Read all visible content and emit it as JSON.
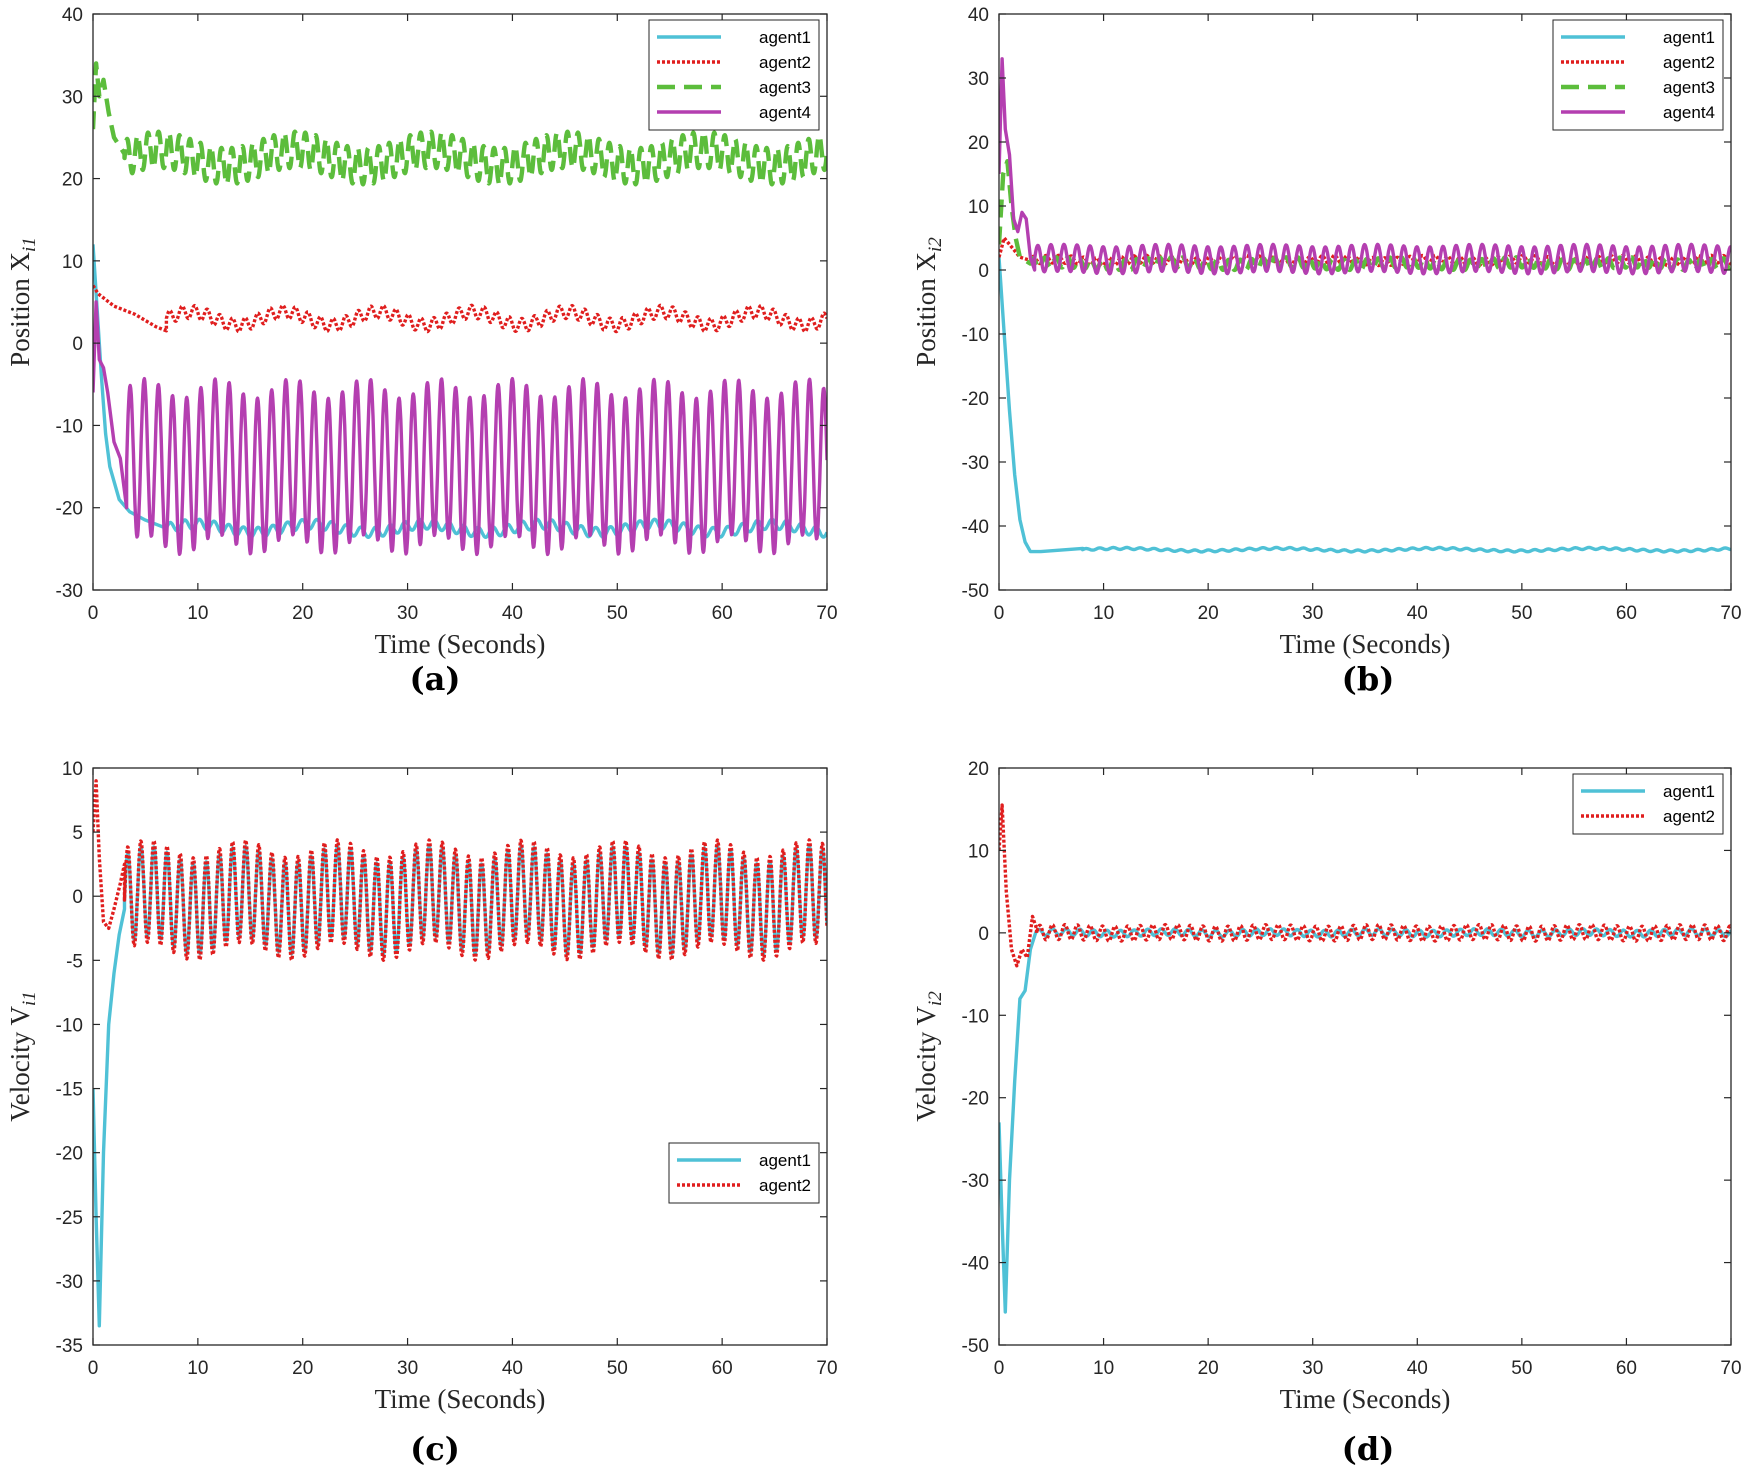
{
  "colors": {
    "agent1": "#4fc1d6",
    "agent2": "#e01e1e",
    "agent3": "#5cbd3c",
    "agent4": "#b43fb0",
    "axis": "#262626"
  },
  "chart_data": [
    {
      "type": "line",
      "panel": "(a)",
      "xlabel": "Time (Seconds)",
      "ylabel_main": "Position X",
      "ylabel_sub": "i1",
      "xlim": [
        0,
        70
      ],
      "ylim": [
        -30,
        40
      ],
      "xticks": [
        0,
        10,
        20,
        30,
        40,
        50,
        60,
        70
      ],
      "yticks": [
        -30,
        -20,
        -10,
        0,
        10,
        20,
        30,
        40
      ],
      "legend_position": "top-right",
      "series": [
        {
          "name": "agent1",
          "key": "agent1",
          "style": "solid",
          "transient": [
            [
              0,
              12
            ],
            [
              0.4,
              4
            ],
            [
              0.8,
              -4
            ],
            [
              1.2,
              -11
            ],
            [
              1.6,
              -15
            ],
            [
              2.5,
              -19
            ],
            [
              3.5,
              -20.5
            ],
            [
              5,
              -21.5
            ],
            [
              7,
              -22.5
            ]
          ],
          "osc": {
            "t0": 7,
            "center": -22.5,
            "amp": 0.6,
            "period": 1.4,
            "amp2": 0.5,
            "period2": 11
          }
        },
        {
          "name": "agent2",
          "key": "agent2",
          "style": "dotted",
          "transient": [
            [
              0,
              7
            ],
            [
              0.5,
              6
            ],
            [
              1,
              5.5
            ],
            [
              2,
              4.5
            ],
            [
              3,
              4
            ],
            [
              4,
              3.5
            ],
            [
              6,
              2
            ],
            [
              7,
              1.5
            ]
          ],
          "osc": {
            "t0": 7,
            "center": 3,
            "amp": 0.8,
            "period": 1.2,
            "amp2": 0.8,
            "period2": 9
          }
        },
        {
          "name": "agent3",
          "key": "agent3",
          "style": "dashed",
          "transient": [
            [
              0,
              26
            ],
            [
              0.3,
              34
            ],
            [
              0.6,
              30
            ],
            [
              1,
              32
            ],
            [
              1.5,
              28
            ],
            [
              2,
              25
            ],
            [
              3,
              23
            ]
          ],
          "osc": {
            "t0": 3,
            "center": 22.5,
            "amp": 2.2,
            "period": 1.0,
            "amp2": 1.0,
            "period2": 13
          }
        },
        {
          "name": "agent4",
          "key": "agent4",
          "style": "solid",
          "transient": [
            [
              0,
              -6
            ],
            [
              0.3,
              5
            ],
            [
              0.6,
              -2
            ],
            [
              1,
              -3
            ],
            [
              1.4,
              -6
            ],
            [
              2,
              -12
            ],
            [
              2.6,
              -14
            ],
            [
              3.2,
              -20
            ]
          ],
          "osc": {
            "t0": 3.2,
            "center": -15,
            "amp": 9.5,
            "period": 1.35,
            "amp2": 1.2,
            "period2": 7
          }
        }
      ]
    },
    {
      "type": "line",
      "panel": "(b)",
      "xlabel": "Time (Seconds)",
      "ylabel_main": "Position X",
      "ylabel_sub": "i2",
      "xlim": [
        0,
        70
      ],
      "ylim": [
        -50,
        40
      ],
      "xticks": [
        0,
        10,
        20,
        30,
        40,
        50,
        60,
        70
      ],
      "yticks": [
        -50,
        -40,
        -30,
        -20,
        -10,
        0,
        10,
        20,
        30,
        40
      ],
      "legend_position": "top-right",
      "series": [
        {
          "name": "agent1",
          "key": "agent1",
          "style": "solid",
          "transient": [
            [
              0,
              2
            ],
            [
              0.5,
              -10
            ],
            [
              1,
              -22
            ],
            [
              1.5,
              -32
            ],
            [
              2,
              -39
            ],
            [
              2.5,
              -42.5
            ],
            [
              3,
              -44
            ],
            [
              4,
              -44
            ],
            [
              8,
              -43.5
            ]
          ],
          "osc": {
            "t0": 8,
            "center": -43.7,
            "amp": 0.15,
            "period": 1.3,
            "amp2": 0.2,
            "period2": 15
          }
        },
        {
          "name": "agent2",
          "key": "agent2",
          "style": "dotted",
          "transient": [
            [
              0,
              2
            ],
            [
              0.5,
              5
            ],
            [
              1,
              4
            ],
            [
              1.5,
              3
            ],
            [
              2,
              2
            ],
            [
              3,
              1.5
            ]
          ],
          "osc": {
            "t0": 3,
            "center": 1.5,
            "amp": 0.6,
            "period": 1.2,
            "amp2": 0.2,
            "period2": 9
          }
        },
        {
          "name": "agent3",
          "key": "agent3",
          "style": "dashed",
          "transient": [
            [
              0,
              4
            ],
            [
              0.4,
              15
            ],
            [
              0.8,
              17
            ],
            [
              1.2,
              10
            ],
            [
              1.6,
              5
            ],
            [
              2,
              2
            ],
            [
              3,
              1
            ]
          ],
          "osc": {
            "t0": 3,
            "center": 1,
            "amp": 0.8,
            "period": 1.1,
            "amp2": 0.2,
            "period2": 11
          }
        },
        {
          "name": "agent4",
          "key": "agent4",
          "style": "solid",
          "transient": [
            [
              0,
              15
            ],
            [
              0.3,
              33
            ],
            [
              0.6,
              22
            ],
            [
              1,
              18
            ],
            [
              1.4,
              8
            ],
            [
              1.8,
              6
            ],
            [
              2.2,
              9
            ],
            [
              2.6,
              8
            ],
            [
              3,
              2
            ],
            [
              3.4,
              0
            ]
          ],
          "osc": {
            "t0": 3.4,
            "center": 1.7,
            "amp": 2.1,
            "period": 1.25,
            "amp2": 0.2,
            "period2": 10
          }
        }
      ]
    },
    {
      "type": "line",
      "panel": "(c)",
      "xlabel": "Time (Seconds)",
      "ylabel_main": "Velocity V",
      "ylabel_sub": "i1",
      "xlim": [
        0,
        70
      ],
      "ylim": [
        -35,
        10
      ],
      "xticks": [
        0,
        10,
        20,
        30,
        40,
        50,
        60,
        70
      ],
      "yticks": [
        -35,
        -30,
        -25,
        -20,
        -15,
        -10,
        -5,
        0,
        5,
        10
      ],
      "legend_position": "bottom-right",
      "series": [
        {
          "name": "agent1",
          "key": "agent1",
          "style": "solid",
          "transient": [
            [
              0,
              -15
            ],
            [
              0.3,
              -25
            ],
            [
              0.6,
              -33.5
            ],
            [
              1,
              -20
            ],
            [
              1.5,
              -10
            ],
            [
              2,
              -6
            ],
            [
              2.5,
              -3
            ],
            [
              3,
              -1
            ]
          ],
          "osc": {
            "t0": 3,
            "center": -0.3,
            "amp": 3.5,
            "period": 1.25,
            "amp2": 0.7,
            "period2": 9
          }
        },
        {
          "name": "agent2",
          "key": "agent2",
          "style": "dotted",
          "transient": [
            [
              0,
              5
            ],
            [
              0.3,
              9
            ],
            [
              0.6,
              3
            ],
            [
              1,
              -2
            ],
            [
              1.5,
              -2.5
            ],
            [
              2,
              -1
            ],
            [
              2.6,
              1
            ],
            [
              3,
              2.5
            ]
          ],
          "osc": {
            "t0": 3,
            "center": -0.3,
            "amp": 4.0,
            "period": 1.25,
            "amp2": 0.7,
            "period2": 9
          }
        }
      ]
    },
    {
      "type": "line",
      "panel": "(d)",
      "xlabel": "Time (Seconds)",
      "ylabel_main": "Velocity V",
      "ylabel_sub": "i2",
      "xlim": [
        0,
        70
      ],
      "ylim": [
        -50,
        20
      ],
      "xticks": [
        0,
        10,
        20,
        30,
        40,
        50,
        60,
        70
      ],
      "yticks": [
        -50,
        -40,
        -30,
        -20,
        -10,
        0,
        10,
        20
      ],
      "legend_position": "top-right",
      "series": [
        {
          "name": "agent1",
          "key": "agent1",
          "style": "solid",
          "transient": [
            [
              0,
              -23
            ],
            [
              0.3,
              -35
            ],
            [
              0.6,
              -46
            ],
            [
              1,
              -30
            ],
            [
              1.5,
              -18
            ],
            [
              2,
              -8
            ],
            [
              2.5,
              -7
            ],
            [
              3,
              -2
            ],
            [
              3.5,
              0
            ]
          ],
          "osc": {
            "t0": 3.5,
            "center": 0,
            "amp": 0.4,
            "period": 1.3,
            "amp2": 0.1,
            "period2": 10
          }
        },
        {
          "name": "agent2",
          "key": "agent2",
          "style": "dotted",
          "transient": [
            [
              0,
              10
            ],
            [
              0.3,
              15.5
            ],
            [
              0.7,
              5
            ],
            [
              1.2,
              -2
            ],
            [
              1.7,
              -4
            ],
            [
              2.2,
              -2
            ],
            [
              2.7,
              -3
            ],
            [
              3.2,
              2
            ],
            [
              3.6,
              0.5
            ]
          ],
          "osc": {
            "t0": 3.6,
            "center": 0,
            "amp": 0.9,
            "period": 1.2,
            "amp2": 0.1,
            "period2": 10
          }
        }
      ]
    }
  ]
}
